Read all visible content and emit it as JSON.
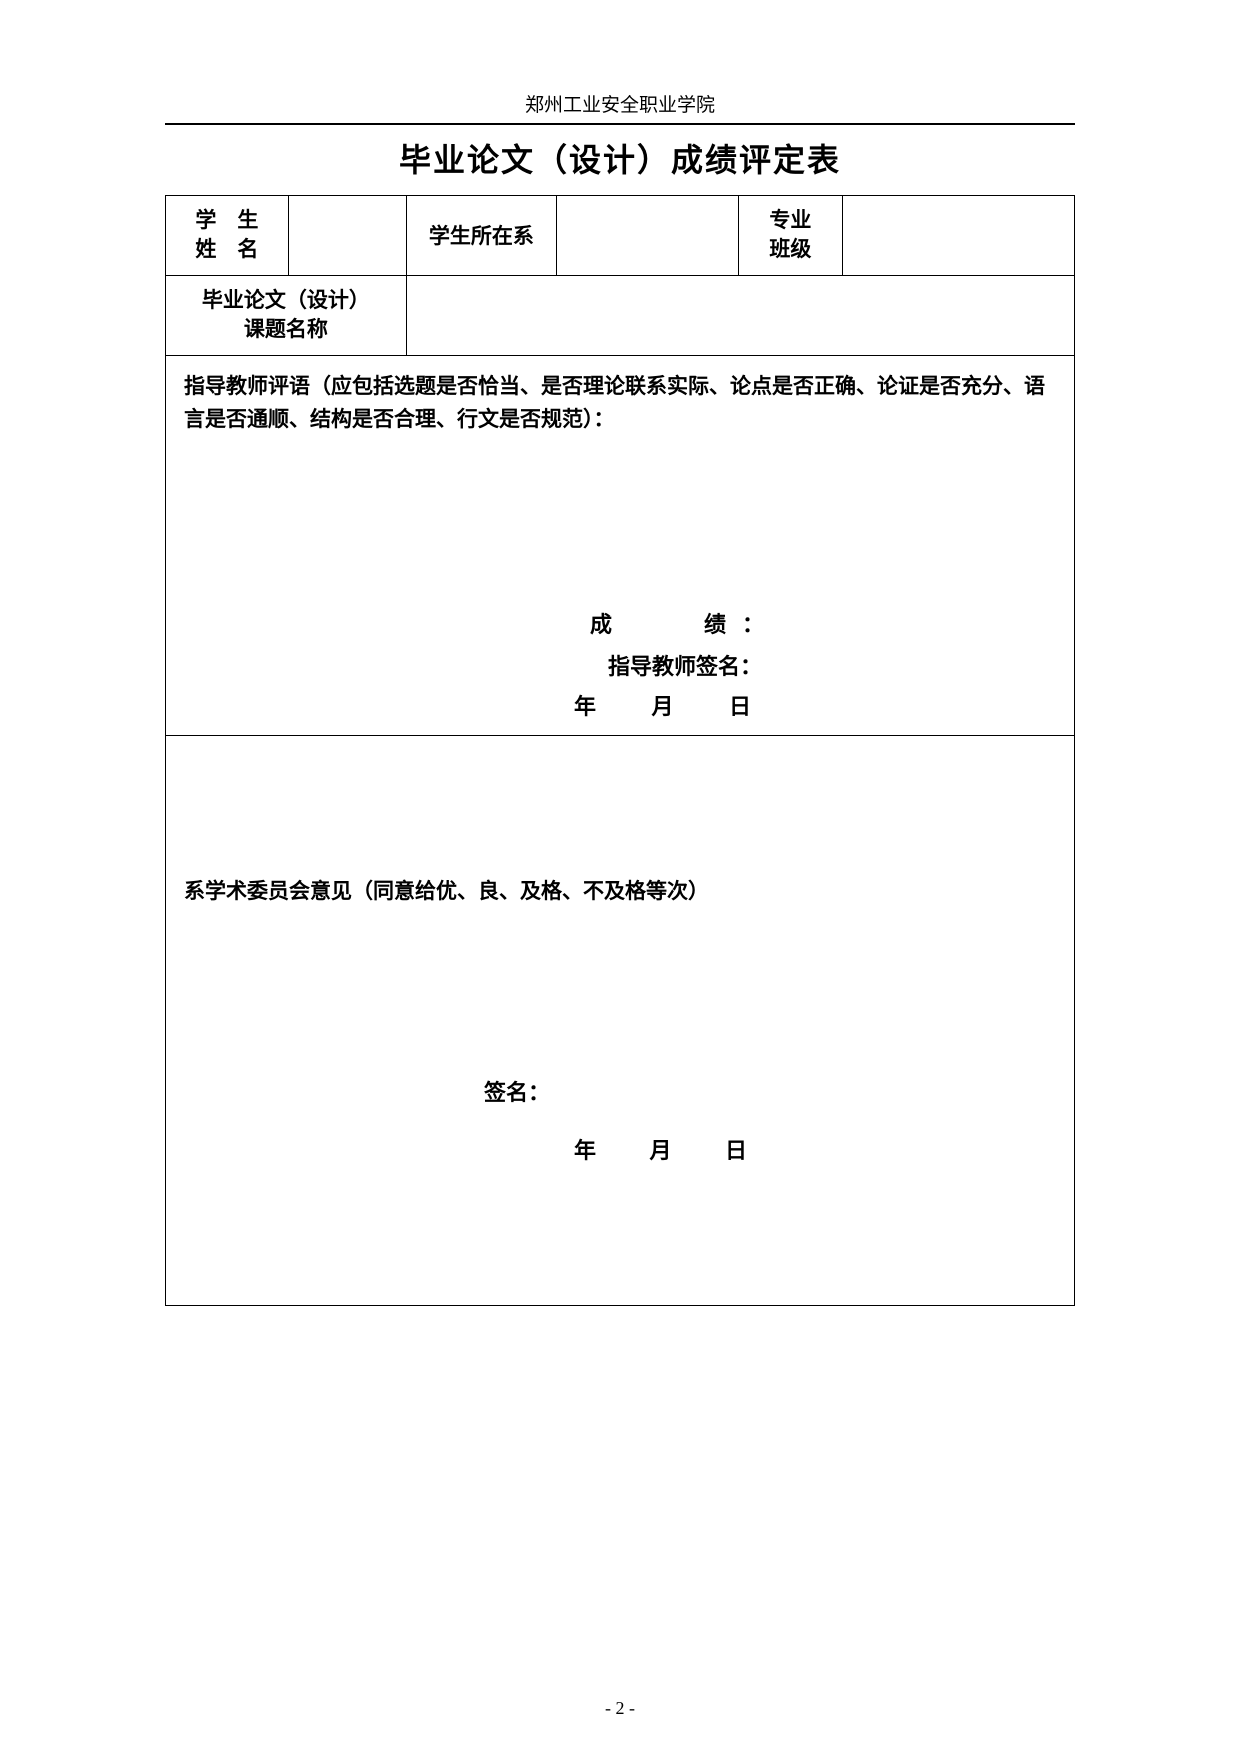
{
  "header": {
    "institution": "郑州工业安全职业学院"
  },
  "title": "毕业论文（设计）成绩评定表",
  "row1": {
    "studentNameLabelLine1": "学　生",
    "studentNameLabelLine2": "姓　名",
    "studentNameValue": "",
    "departmentLabel": "学生所在系",
    "departmentValue": "",
    "majorLabelLine1": "专业",
    "majorLabelLine2": "班级",
    "majorValue": ""
  },
  "row2": {
    "topicLabelLine1": "毕业论文（设计）",
    "topicLabelLine2": "课题名称",
    "topicValue": ""
  },
  "advisorSection": {
    "commentTitle": "指导教师评语（应包括选题是否恰当、是否理论联系实际、论点是否正确、论证是否充分、语言是否通顺、结构是否合理、行文是否规范）：",
    "scoreLabel": "成　　绩：",
    "signLabel": "指导教师签名：",
    "yearLabel": "年",
    "monthLabel": "月",
    "dayLabel": "日"
  },
  "committeeSection": {
    "title": "系学术委员会意见（同意给优、良、及格、不及格等次）",
    "signLabel": "签名：",
    "yearLabel": "年",
    "monthLabel": "月",
    "dayLabel": "日"
  },
  "footer": {
    "pageNumber": "- 2 -"
  },
  "style": {
    "pageWidthPx": 1240,
    "pageHeightPx": 1753,
    "backgroundColor": "#ffffff",
    "textColor": "#000000",
    "borderColor": "#000000",
    "headerRuleColor": "#000000",
    "fontFamilyMain": "SimSun",
    "fontFamilyBoldLabels": "SimHei",
    "titleFontSizePx": 32,
    "bodyFontSizePx": 21,
    "headerFontSizePx": 19,
    "pageNumberFontSizePx": 18,
    "tableBorderWidthPx": 1.5,
    "columnWidthsPercent": [
      13.5,
      13,
      16.5,
      20,
      11.5,
      25.5
    ]
  }
}
